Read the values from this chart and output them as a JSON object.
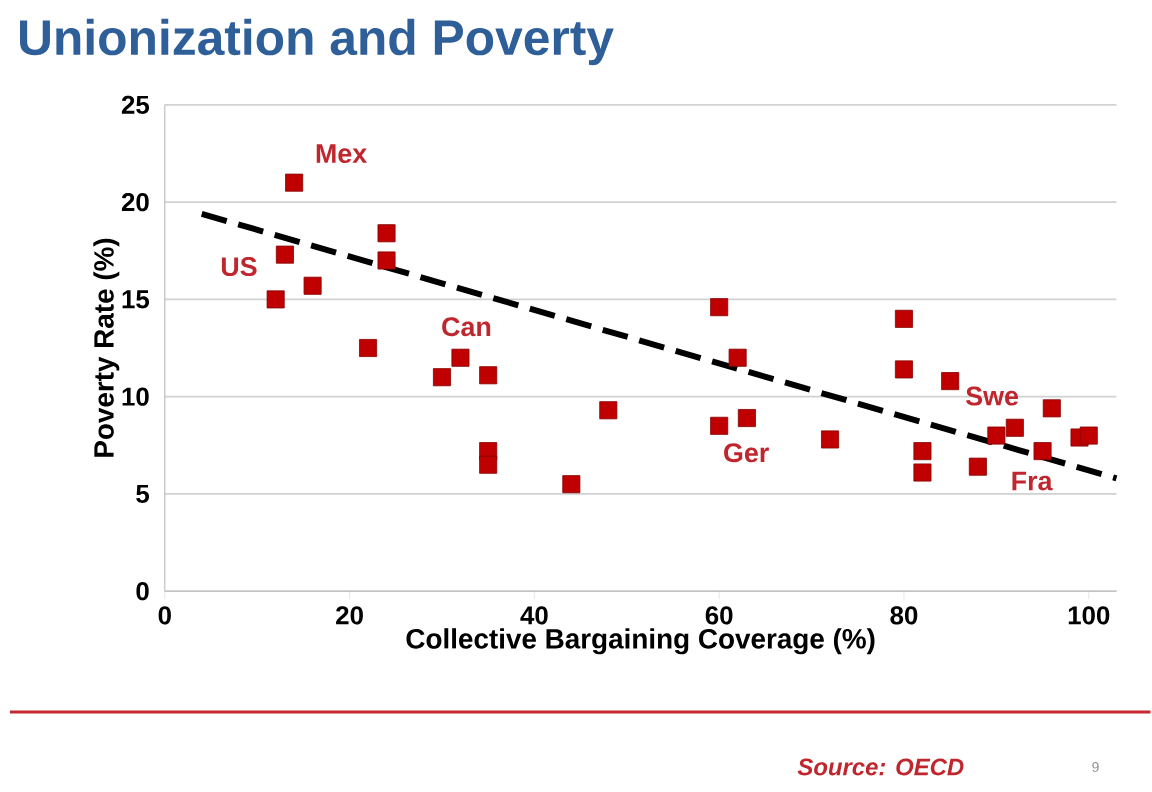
{
  "chart_data": {
    "type": "scatter",
    "title": "Unionization and Poverty",
    "xlabel": "Collective Bargaining Coverage (%)",
    "ylabel": "Poverty Rate (%)",
    "xlim": [
      0,
      103
    ],
    "ylim": [
      0,
      25
    ],
    "xticks": [
      0,
      20,
      40,
      60,
      80,
      100
    ],
    "yticks": [
      0,
      5,
      10,
      15,
      20,
      25
    ],
    "grid": "y",
    "legend": false,
    "series": [
      {
        "marker": "square",
        "color": "#c00000",
        "x": [
          12,
          13,
          14,
          16,
          22,
          24,
          24,
          30,
          32,
          35,
          35,
          35,
          44,
          48,
          60,
          60,
          62,
          63,
          72,
          80,
          80,
          82,
          82,
          85,
          88,
          90,
          92,
          95,
          96,
          99,
          100
        ],
        "values": [
          15,
          17.3,
          21,
          15.7,
          12.5,
          18.4,
          17,
          11,
          12,
          11.1,
          7.2,
          6.5,
          5.5,
          9.3,
          14.6,
          8.5,
          12,
          8.9,
          7.8,
          14,
          11.4,
          7.2,
          6.1,
          10.8,
          6.4,
          8,
          8.4,
          7.2,
          9.4,
          7.9,
          8
        ]
      },
      {
        "type": "line",
        "marker": "none",
        "line_style": "dashed",
        "color": "#000000",
        "x": [
          4,
          103
        ],
        "values": [
          19.4,
          5.8
        ]
      }
    ],
    "annotations": [
      {
        "text": "Mex",
        "x": 14,
        "y": 21
      },
      {
        "text": "US",
        "x": 13,
        "y": 17.3
      },
      {
        "text": "Can",
        "x": 32,
        "y": 12
      },
      {
        "text": "Ger",
        "x": 60,
        "y": 8.5
      },
      {
        "text": "Swe",
        "x": 85,
        "y": 10.8
      },
      {
        "text": "Fra",
        "x": 95,
        "y": 7.2
      },
      "Source: OECD",
      "9"
    ]
  }
}
